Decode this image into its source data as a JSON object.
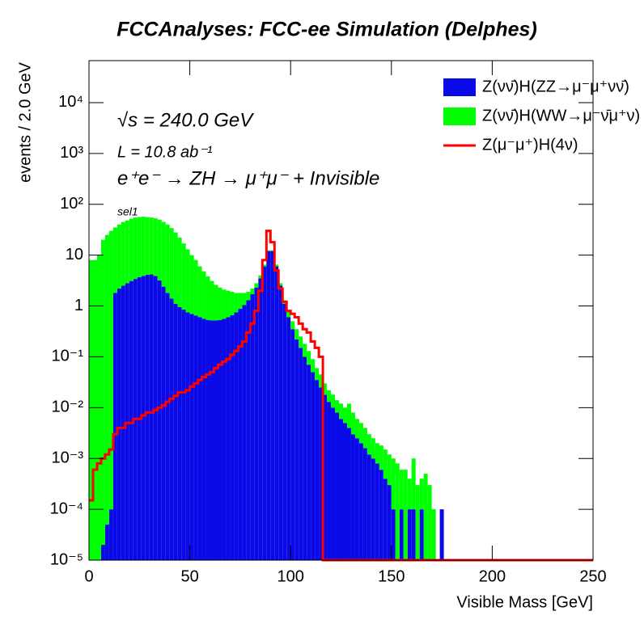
{
  "chart_data": {
    "type": "histogram",
    "title": "FCCAnalyses: FCC-ee Simulation (Delphes)",
    "xlabel": "Visible Mass [GeV]",
    "ylabel": "events / 2.0 GeV",
    "annotations": [
      "√s = 240.0 GeV",
      "L = 10.8 ab⁻¹",
      "e⁺e⁻ → ZH → μ⁺μ⁻ + Invisible",
      "sel1"
    ],
    "log_y": true,
    "stacked": true,
    "legend": "upper right",
    "xlim": [
      0,
      250
    ],
    "xticks": [
      0,
      50,
      100,
      150,
      200,
      250
    ],
    "ylim": [
      1e-05,
      67000
    ],
    "yticks": [
      {
        "value": 1e-05,
        "label": "10⁻⁵"
      },
      {
        "value": 0.0001,
        "label": "10⁻⁴"
      },
      {
        "value": 0.001,
        "label": "10⁻³"
      },
      {
        "value": 0.01,
        "label": "10⁻²"
      },
      {
        "value": 0.1,
        "label": "10⁻¹"
      },
      1,
      10,
      {
        "value": 100,
        "label": "10²"
      },
      {
        "value": 1000,
        "label": "10³"
      },
      {
        "value": 10000,
        "label": "10⁴"
      }
    ],
    "bins": [
      0,
      2,
      4,
      6,
      8,
      10,
      12,
      14,
      16,
      18,
      20,
      22,
      24,
      26,
      28,
      30,
      32,
      34,
      36,
      38,
      40,
      42,
      44,
      46,
      48,
      50,
      52,
      54,
      56,
      58,
      60,
      62,
      64,
      66,
      68,
      70,
      72,
      74,
      76,
      78,
      80,
      82,
      84,
      86,
      88,
      90,
      92,
      94,
      96,
      98,
      100,
      102,
      104,
      106,
      108,
      110,
      112,
      114,
      116,
      118,
      120,
      122,
      124,
      126,
      128,
      130,
      132,
      134,
      136,
      138,
      140,
      142,
      144,
      146,
      148,
      150,
      152,
      154,
      156,
      158,
      160,
      162,
      164,
      166,
      168,
      170,
      172,
      174,
      176,
      178,
      180,
      182,
      184,
      186,
      188,
      190,
      192,
      194,
      196,
      198,
      200,
      202,
      204,
      206,
      208,
      210,
      212,
      214,
      216,
      218,
      220,
      222,
      224,
      226,
      228,
      230,
      232,
      234,
      236,
      238,
      240,
      242,
      244,
      246,
      248,
      250
    ],
    "series": [
      {
        "name": "Z(νν̄)H(ZZ→μ⁻μ⁺νν̄)",
        "color": "#0a0ae8",
        "draw": "bar",
        "values": [
          0,
          0,
          0,
          2e-05,
          5e-05,
          0.0001,
          1.8,
          2.2,
          2.5,
          2.8,
          3.1,
          3.4,
          3.7,
          3.9,
          4.1,
          4.2,
          3.9,
          3.2,
          2.4,
          1.8,
          1.4,
          1.1,
          0.95,
          0.85,
          0.75,
          0.7,
          0.65,
          0.6,
          0.56,
          0.53,
          0.52,
          0.52,
          0.53,
          0.56,
          0.6,
          0.66,
          0.75,
          0.88,
          1.05,
          1.3,
          1.7,
          2.3,
          3.5,
          6,
          12,
          12,
          6,
          2.5,
          1.1,
          0.6,
          0.35,
          0.22,
          0.15,
          0.1,
          0.07,
          0.05,
          0.035,
          0.025,
          0.018,
          0.013,
          0.01,
          0.008,
          0.006,
          0.005,
          0.004,
          0.003,
          0.0025,
          0.002,
          0.0016,
          0.0012,
          0.001,
          0.0008,
          0.0006,
          0.0004,
          0.0003,
          0.0001,
          0,
          0.0001,
          0,
          0.0001,
          0.0001,
          0,
          0.0001,
          0,
          0,
          0,
          0,
          0.0001,
          0,
          0,
          0,
          0,
          0,
          0,
          0,
          0,
          0,
          0,
          0,
          0,
          0,
          0,
          0,
          0,
          0,
          0,
          0,
          0,
          0,
          0,
          0,
          0,
          0,
          0,
          0,
          0,
          0,
          0,
          0,
          0,
          0,
          0,
          0,
          0,
          0
        ]
      },
      {
        "name": "Z(νν̄)H(WW→μ⁻ν̄μ⁺ν)",
        "color": "#00ff00",
        "draw": "bar",
        "values": [
          8,
          8,
          10,
          20,
          25,
          30,
          33.2,
          37.8,
          42.5,
          45.2,
          48.9,
          51.6,
          52.3,
          53.1,
          51.9,
          50.8,
          49.1,
          46.8,
          42.6,
          38.2,
          32.6,
          26.9,
          21.05,
          16.15,
          12.25,
          9.3,
          7.35,
          5.4,
          4.24,
          3.27,
          2.58,
          2.08,
          1.77,
          1.54,
          1.4,
          1.24,
          1.05,
          0.92,
          0.75,
          0.6,
          0.5,
          0.5,
          0.5,
          0.5,
          0.5,
          0.5,
          0.5,
          0.3,
          0.2,
          0.2,
          0.15,
          0.13,
          0.1,
          0.08,
          0.06,
          0.04,
          0.025,
          0.02,
          0.012,
          0.009,
          0.008,
          0.006,
          0.006,
          0.005,
          0.008,
          0.005,
          0.0035,
          0.003,
          0.0024,
          0.0018,
          0.0015,
          0.0012,
          0.0012,
          0.0011,
          0.0009,
          0.0009,
          0.0008,
          0.0005,
          0.0006,
          0.0003,
          0.0009,
          0.0003,
          0.0003,
          0.0005,
          0.0003,
          0.0001,
          0,
          0,
          0,
          0,
          0,
          0,
          0,
          0,
          0,
          0,
          0,
          0,
          0,
          0,
          0,
          0,
          0,
          0,
          0,
          0,
          0,
          0,
          0,
          0,
          0,
          0,
          0,
          0,
          0,
          0,
          0,
          0,
          0,
          0,
          0,
          0,
          0,
          0,
          0
        ]
      },
      {
        "name": "Z(μ⁻μ⁺)H(4ν)",
        "color": "#ff0000",
        "draw": "step",
        "values": [
          0.00015,
          0.0006,
          0.0008,
          0.001,
          0.0012,
          0.0015,
          0.003,
          0.004,
          0.004,
          0.005,
          0.005,
          0.006,
          0.006,
          0.007,
          0.008,
          0.008,
          0.009,
          0.01,
          0.011,
          0.013,
          0.015,
          0.017,
          0.02,
          0.02,
          0.022,
          0.026,
          0.03,
          0.035,
          0.04,
          0.045,
          0.05,
          0.06,
          0.07,
          0.08,
          0.09,
          0.11,
          0.13,
          0.16,
          0.2,
          0.3,
          0.45,
          0.8,
          2,
          8,
          30,
          18,
          5,
          2.2,
          1.2,
          0.8,
          0.7,
          0.6,
          0.45,
          0.35,
          0.3,
          0.2,
          0.15,
          0.1,
          0,
          0,
          0,
          0,
          0,
          0,
          0,
          0,
          0,
          0,
          0,
          0,
          0,
          0,
          0,
          0,
          0,
          0,
          0,
          0,
          0,
          0,
          0,
          0,
          0,
          0,
          0,
          0,
          0,
          0,
          0,
          0,
          0,
          0,
          0,
          0,
          0,
          0,
          0,
          0,
          0,
          0,
          0,
          0,
          0,
          0,
          0,
          0,
          0,
          0,
          0,
          0,
          0,
          0,
          0,
          0,
          0,
          0,
          0,
          0,
          0,
          0,
          0,
          0,
          0,
          0,
          0
        ]
      }
    ]
  }
}
